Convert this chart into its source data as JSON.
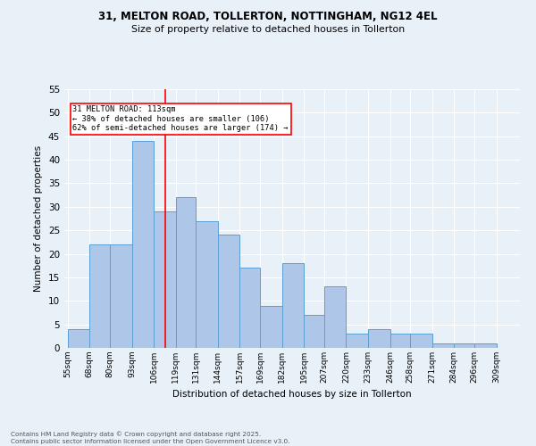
{
  "title1": "31, MELTON ROAD, TOLLERTON, NOTTINGHAM, NG12 4EL",
  "title2": "Size of property relative to detached houses in Tollerton",
  "xlabel": "Distribution of detached houses by size in Tollerton",
  "ylabel": "Number of detached properties",
  "bins": [
    55,
    68,
    80,
    93,
    106,
    119,
    131,
    144,
    157,
    169,
    182,
    195,
    207,
    220,
    233,
    246,
    258,
    271,
    284,
    296,
    309
  ],
  "counts": [
    4,
    22,
    22,
    44,
    29,
    32,
    27,
    24,
    17,
    9,
    18,
    7,
    13,
    3,
    4,
    3,
    3,
    1,
    1,
    1
  ],
  "bar_color": "#aec6e8",
  "bar_edge_color": "#5a9fd4",
  "vline_x": 113,
  "vline_color": "red",
  "annotation_text": "31 MELTON ROAD: 113sqm\n← 38% of detached houses are smaller (106)\n62% of semi-detached houses are larger (174) →",
  "annotation_box_color": "white",
  "annotation_box_edge": "red",
  "ylim": [
    0,
    55
  ],
  "yticks": [
    0,
    5,
    10,
    15,
    20,
    25,
    30,
    35,
    40,
    45,
    50,
    55
  ],
  "bg_color": "#e8f0f8",
  "footnote1": "Contains HM Land Registry data © Crown copyright and database right 2025.",
  "footnote2": "Contains public sector information licensed under the Open Government Licence v3.0."
}
